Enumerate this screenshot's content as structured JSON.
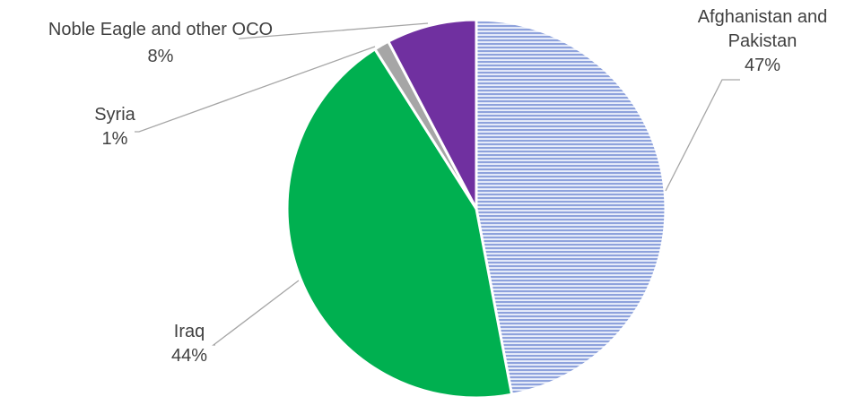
{
  "chart_data": {
    "type": "pie",
    "title": "",
    "slices": [
      {
        "label": "Afghanistan and Pakistan",
        "label_lines": [
          "Afghanistan and",
          "Pakistan"
        ],
        "pct_text": "47%",
        "value": 47,
        "color": "#8ea2dc",
        "pattern": "horizontal-lines"
      },
      {
        "label": "Iraq",
        "label_lines": [
          "Iraq"
        ],
        "pct_text": "44%",
        "value": 44,
        "color": "#00b050",
        "pattern": "solid"
      },
      {
        "label": "Syria",
        "label_lines": [
          "Syria"
        ],
        "pct_text": "1%",
        "value": 1.3,
        "color": "#a6a6a6",
        "pattern": "solid"
      },
      {
        "label": "Noble Eagle and other OCO",
        "label_lines": [
          "Noble Eagle and other OCO"
        ],
        "pct_text": "8%",
        "value": 7.7,
        "color": "#7030a0",
        "pattern": "solid"
      }
    ],
    "start_angle": "12 o'clock",
    "direction": "clockwise",
    "legend": "none",
    "data_labels": "outside with leader lines"
  }
}
